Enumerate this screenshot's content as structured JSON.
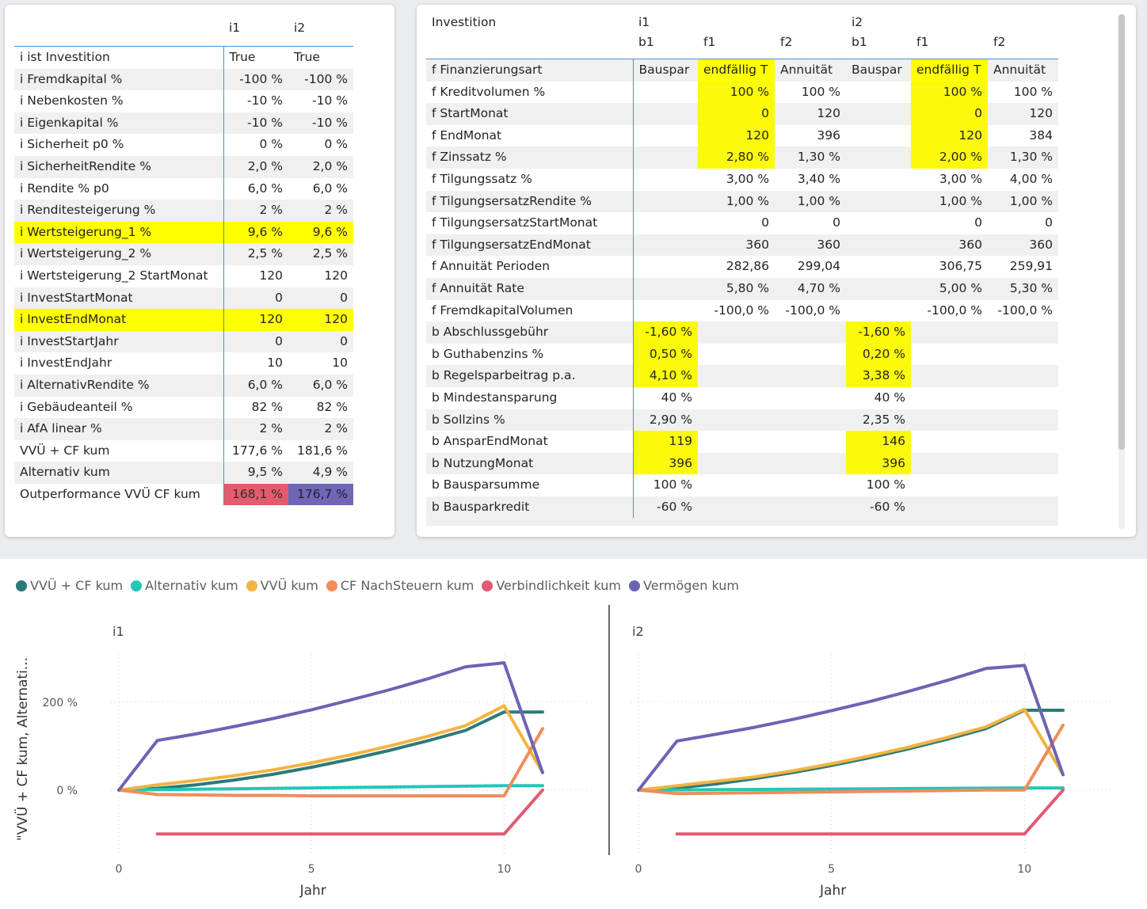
{
  "left_table": {
    "headers": [
      "",
      "i1",
      "i2"
    ],
    "rows": [
      {
        "label": "i ist Investition",
        "v1": "True",
        "v2": "True",
        "hl": false
      },
      {
        "label": "i Fremdkapital %",
        "v1": "-100 %",
        "v2": "-100 %",
        "hl": false
      },
      {
        "label": "i Nebenkosten %",
        "v1": "-10 %",
        "v2": "-10 %",
        "hl": false
      },
      {
        "label": "i Eigenkapital %",
        "v1": "-10 %",
        "v2": "-10 %",
        "hl": false
      },
      {
        "label": "i Sicherheit p0 %",
        "v1": "0 %",
        "v2": "0 %",
        "hl": false
      },
      {
        "label": "i SicherheitRendite %",
        "v1": "2,0 %",
        "v2": "2,0 %",
        "hl": false
      },
      {
        "label": "i Rendite % p0",
        "v1": "6,0 %",
        "v2": "6,0 %",
        "hl": false
      },
      {
        "label": "i Renditesteigerung %",
        "v1": "2 %",
        "v2": "2 %",
        "hl": false
      },
      {
        "label": "i Wertsteigerung_1 %",
        "v1": "9,6 %",
        "v2": "9,6 %",
        "hl": true
      },
      {
        "label": "i Wertsteigerung_2 %",
        "v1": "2,5 %",
        "v2": "2,5 %",
        "hl": false
      },
      {
        "label": "i Wertsteigerung_2 StartMonat",
        "v1": "120",
        "v2": "120",
        "hl": false
      },
      {
        "label": "i InvestStartMonat",
        "v1": "0",
        "v2": "0",
        "hl": false
      },
      {
        "label": "i InvestEndMonat",
        "v1": "120",
        "v2": "120",
        "hl": true
      },
      {
        "label": "i InvestStartJahr",
        "v1": "0",
        "v2": "0",
        "hl": false
      },
      {
        "label": "i InvestEndJahr",
        "v1": "10",
        "v2": "10",
        "hl": false
      },
      {
        "label": "i AlternativRendite %",
        "v1": "6,0 %",
        "v2": "6,0 %",
        "hl": false
      },
      {
        "label": "i Gebäudeanteil %",
        "v1": "82 %",
        "v2": "82 %",
        "hl": false
      },
      {
        "label": "i AfA linear %",
        "v1": "2 %",
        "v2": "2 %",
        "hl": false
      },
      {
        "label": "VVÜ + CF kum",
        "v1": "177,6 %",
        "v2": "181,6 %",
        "hl": false
      },
      {
        "label": "Alternativ kum",
        "v1": "9,5 %",
        "v2": "4,9 %",
        "hl": false
      },
      {
        "label": "Outperformance VVÜ CF kum",
        "v1": "168,1 %",
        "v2": "176,7 %",
        "hl": false,
        "special": true
      }
    ]
  },
  "right_table": {
    "header_row1": [
      "Investition",
      "i1",
      "",
      "",
      "i2",
      "",
      ""
    ],
    "header_row2": [
      "",
      "b1",
      "f1",
      "f2",
      "b1",
      "f1",
      "f2"
    ],
    "rows": [
      {
        "label": "f Finanzierungsart",
        "c": [
          "Bauspar",
          "endfällig T",
          "Annuität",
          "Bauspar",
          "endfällig T",
          "Annuität"
        ],
        "hl": [
          0,
          1,
          0,
          0,
          1,
          0
        ]
      },
      {
        "label": "f Kreditvolumen %",
        "c": [
          "",
          "100 %",
          "100 %",
          "",
          "100 %",
          "100 %"
        ],
        "hl": [
          0,
          1,
          0,
          0,
          1,
          0
        ]
      },
      {
        "label": "f StartMonat",
        "c": [
          "",
          "0",
          "120",
          "",
          "0",
          "120"
        ],
        "hl": [
          0,
          1,
          0,
          0,
          1,
          0
        ]
      },
      {
        "label": "f EndMonat",
        "c": [
          "",
          "120",
          "396",
          "",
          "120",
          "384"
        ],
        "hl": [
          0,
          1,
          0,
          0,
          1,
          0
        ]
      },
      {
        "label": "f Zinssatz %",
        "c": [
          "",
          "2,80 %",
          "1,30 %",
          "",
          "2,00 %",
          "1,30 %"
        ],
        "hl": [
          0,
          1,
          0,
          0,
          1,
          0
        ]
      },
      {
        "label": "f Tilgungssatz %",
        "c": [
          "",
          "3,00 %",
          "3,40 %",
          "",
          "3,00 %",
          "4,00 %"
        ],
        "hl": [
          0,
          0,
          0,
          0,
          0,
          0
        ]
      },
      {
        "label": "f TilgungsersatzRendite %",
        "c": [
          "",
          "1,00 %",
          "1,00 %",
          "",
          "1,00 %",
          "1,00 %"
        ],
        "hl": [
          0,
          0,
          0,
          0,
          0,
          0
        ]
      },
      {
        "label": "f TilgungsersatzStartMonat",
        "c": [
          "",
          "0",
          "0",
          "",
          "0",
          "0"
        ],
        "hl": [
          0,
          0,
          0,
          0,
          0,
          0
        ]
      },
      {
        "label": "f TilgungsersatzEndMonat",
        "c": [
          "",
          "360",
          "360",
          "",
          "360",
          "360"
        ],
        "hl": [
          0,
          0,
          0,
          0,
          0,
          0
        ]
      },
      {
        "label": "f Annuität Perioden",
        "c": [
          "",
          "282,86",
          "299,04",
          "",
          "306,75",
          "259,91"
        ],
        "hl": [
          0,
          0,
          0,
          0,
          0,
          0
        ]
      },
      {
        "label": "f Annuität Rate",
        "c": [
          "",
          "5,80 %",
          "4,70 %",
          "",
          "5,00 %",
          "5,30 %"
        ],
        "hl": [
          0,
          0,
          0,
          0,
          0,
          0
        ]
      },
      {
        "label": "f FremdkapitalVolumen",
        "c": [
          "",
          "-100,0 %",
          "-100,0 %",
          "",
          "-100,0 %",
          "-100,0 %"
        ],
        "hl": [
          0,
          0,
          0,
          0,
          0,
          0
        ]
      },
      {
        "label": "b Abschlussgebühr",
        "c": [
          "-1,60 %",
          "",
          "",
          "-1,60 %",
          "",
          ""
        ],
        "hl": [
          1,
          0,
          0,
          1,
          0,
          0
        ]
      },
      {
        "label": "b Guthabenzins %",
        "c": [
          "0,50 %",
          "",
          "",
          "0,20 %",
          "",
          ""
        ],
        "hl": [
          1,
          0,
          0,
          1,
          0,
          0
        ]
      },
      {
        "label": "b Regelsparbeitrag p.a.",
        "c": [
          "4,10 %",
          "",
          "",
          "3,38 %",
          "",
          ""
        ],
        "hl": [
          1,
          0,
          0,
          1,
          0,
          0
        ]
      },
      {
        "label": "b Mindestansparung",
        "c": [
          "40 %",
          "",
          "",
          "40 %",
          "",
          ""
        ],
        "hl": [
          0,
          0,
          0,
          0,
          0,
          0
        ]
      },
      {
        "label": "b Sollzins %",
        "c": [
          "2,90 %",
          "",
          "",
          "2,35 %",
          "",
          ""
        ],
        "hl": [
          0,
          0,
          0,
          0,
          0,
          0
        ]
      },
      {
        "label": "b AnsparEndMonat",
        "c": [
          "119",
          "",
          "",
          "146",
          "",
          ""
        ],
        "hl": [
          1,
          0,
          0,
          1,
          0,
          0
        ]
      },
      {
        "label": "b NutzungMonat",
        "c": [
          "396",
          "",
          "",
          "396",
          "",
          ""
        ],
        "hl": [
          1,
          0,
          0,
          1,
          0,
          0
        ]
      },
      {
        "label": "b Bausparsumme",
        "c": [
          "100 %",
          "",
          "",
          "100 %",
          "",
          ""
        ],
        "hl": [
          0,
          0,
          0,
          0,
          0,
          0
        ]
      },
      {
        "label": "b Bausparkredit",
        "c": [
          "-60 %",
          "",
          "",
          "-60 %",
          "",
          ""
        ],
        "hl": [
          0,
          0,
          0,
          0,
          0,
          0
        ]
      }
    ]
  },
  "chart_data": {
    "type": "line",
    "legend": [
      "VVÜ + CF kum",
      "Alternativ kum",
      "VVÜ kum",
      "CF NachSteuern kum",
      "Verbindlichkeit kum",
      "Vermögen kum"
    ],
    "colors": [
      "#2b7a7a",
      "#22c7b8",
      "#f2b441",
      "#ef8d5b",
      "#e25a74",
      "#6b64b5"
    ],
    "ylabel": "\"VVÜ + CF kum, Alternati...",
    "xlabel": "Jahr",
    "x_ticks": [
      "0",
      "5",
      "10"
    ],
    "y_ticks": [
      "0 %",
      "200 %"
    ],
    "panels": [
      {
        "title": "i1",
        "x": [
          0,
          1,
          2,
          3,
          4,
          5,
          6,
          7,
          8,
          9,
          10,
          11
        ],
        "series": [
          {
            "name": "VVÜ + CF kum",
            "values": [
              0,
              4,
              12,
              23,
              36,
              52,
              70,
              90,
              112,
              136,
              178,
              178
            ]
          },
          {
            "name": "Alternativ kum",
            "values": [
              0,
              1,
              2,
              3,
              4,
              5,
              6,
              7,
              8,
              9,
              10,
              10
            ]
          },
          {
            "name": "VVÜ kum",
            "values": [
              0,
              12,
              22,
              33,
              46,
              62,
              80,
              100,
              122,
              147,
              192,
              40
            ]
          },
          {
            "name": "CF NachSteuern kum",
            "values": [
              0,
              -10,
              -11,
              -12,
              -12,
              -13,
              -13,
              -13,
              -13,
              -13,
              -13,
              140
            ]
          },
          {
            "name": "Verbindlichkeit kum",
            "values": [
              null,
              -100,
              -100,
              -100,
              -100,
              -100,
              -100,
              -100,
              -100,
              -100,
              -100,
              0
            ]
          },
          {
            "name": "Vermögen kum",
            "values": [
              0,
              113,
              128,
              145,
              163,
              183,
              205,
              228,
              253,
              281,
              290,
              40
            ]
          }
        ]
      },
      {
        "title": "i2",
        "x": [
          0,
          1,
          2,
          3,
          4,
          5,
          6,
          7,
          8,
          9,
          10,
          11
        ],
        "series": [
          {
            "name": "VVÜ + CF kum",
            "values": [
              0,
              5,
              14,
              26,
              40,
              56,
              74,
              94,
              116,
              140,
              182,
              182
            ]
          },
          {
            "name": "Alternativ kum",
            "values": [
              0,
              0.5,
              1,
              1.5,
              2,
              2.5,
              3,
              3.5,
              4,
              4.5,
              5,
              5
            ]
          },
          {
            "name": "VVÜ kum",
            "values": [
              0,
              10,
              20,
              30,
              44,
              60,
              78,
              98,
              120,
              144,
              184,
              35
            ]
          },
          {
            "name": "CF NachSteuern kum",
            "values": [
              0,
              -8,
              -7,
              -6,
              -5,
              -4,
              -3,
              -2,
              -1,
              0,
              0,
              148
            ]
          },
          {
            "name": "Verbindlichkeit kum",
            "values": [
              null,
              -100,
              -100,
              -100,
              -100,
              -100,
              -100,
              -100,
              -100,
              -100,
              -100,
              0
            ]
          },
          {
            "name": "Vermögen kum",
            "values": [
              0,
              112,
              127,
              143,
              161,
              181,
              202,
              225,
              250,
              277,
              284,
              35
            ]
          }
        ]
      }
    ],
    "ylim": [
      -150,
      310
    ],
    "xlim": [
      0,
      11
    ]
  }
}
